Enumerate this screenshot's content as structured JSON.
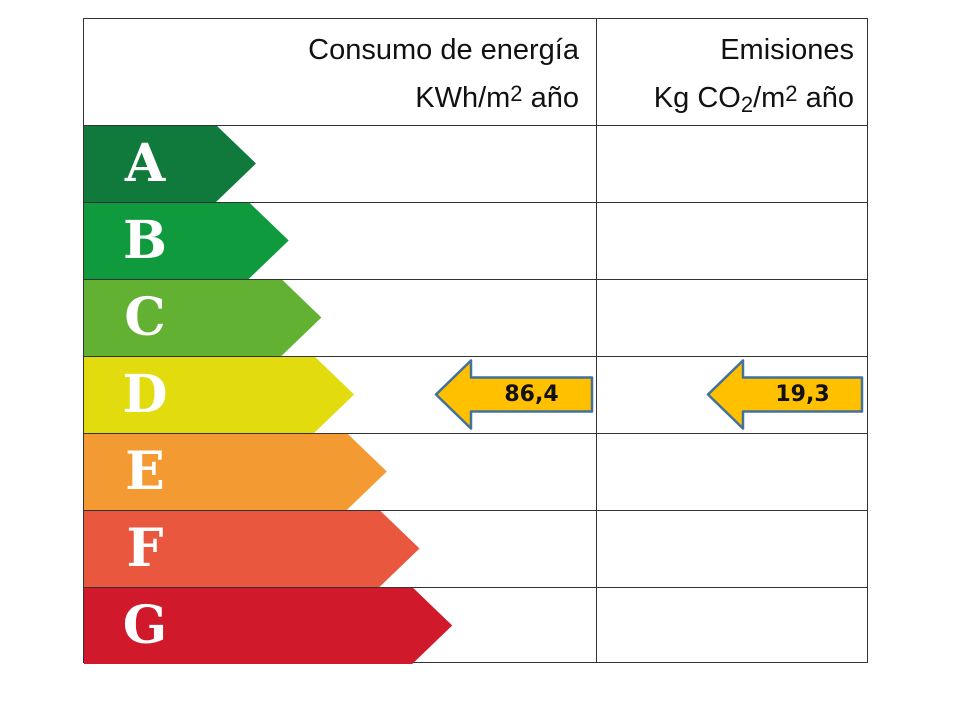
{
  "header": {
    "energy_title": "Consumo de energía",
    "energy_unit_a": "KWh/m",
    "energy_unit_sup": "2",
    "energy_unit_b": " año",
    "emissions_title": "Emisiones",
    "emissions_unit_a": "Kg CO",
    "emissions_unit_sub": "2",
    "emissions_unit_b": "/m",
    "emissions_unit_sup": "2",
    "emissions_unit_c": " año"
  },
  "ratings": [
    {
      "letter": "A",
      "color": "#0f7a3c"
    },
    {
      "letter": "B",
      "color": "#109a3e"
    },
    {
      "letter": "C",
      "color": "#63b132"
    },
    {
      "letter": "D",
      "color": "#e2dc0f"
    },
    {
      "letter": "E",
      "color": "#f39a32"
    },
    {
      "letter": "F",
      "color": "#e9573f"
    },
    {
      "letter": "G",
      "color": "#d0192b"
    }
  ],
  "result": {
    "rating": "D",
    "energy_value": "86,4",
    "emissions_value": "19,3",
    "arrow_fill": "#ffc000",
    "arrow_stroke": "#41719c"
  }
}
